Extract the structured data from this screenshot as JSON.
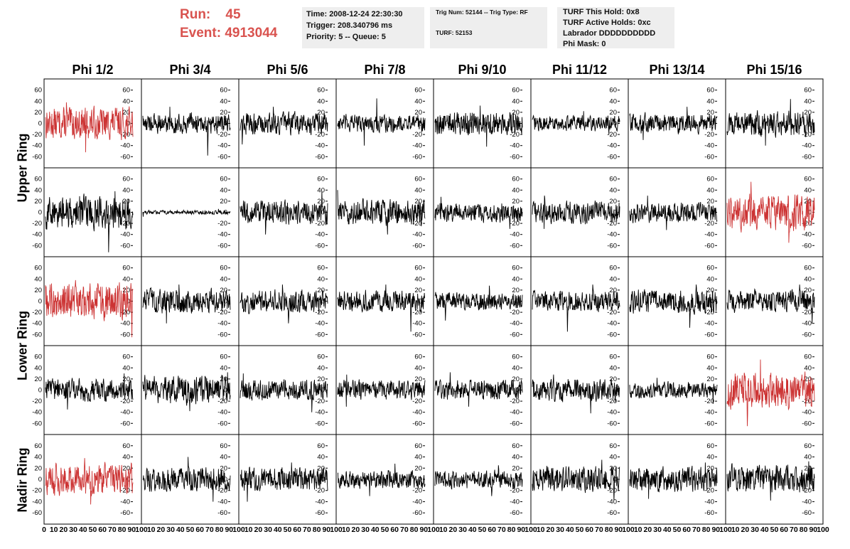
{
  "header": {
    "run_label": "Run:",
    "run_value": "45",
    "event_label": "Event:",
    "event_value": "4913044",
    "time_box": [
      "Time: 2008-12-24 22:30:30",
      "Trigger: 208.340796 ms",
      "Priority: 5 -- Queue: 5"
    ],
    "trig_box": [
      "Trig Num: 52144 -- Trig Type: RF",
      "TURF: 52153"
    ],
    "turf_box": [
      "TURF This Hold: 0x8",
      "TURF Active Holds: 0xc",
      "Labrador DDDDDDDDDD",
      "Phi Mask: 0"
    ]
  },
  "columns": [
    "Phi 1/2",
    "Phi 3/4",
    "Phi 5/6",
    "Phi 7/8",
    "Phi 9/10",
    "Phi 11/12",
    "Phi 13/14",
    "Phi 15/16"
  ],
  "rings": [
    "Upper Ring",
    "Lower Ring",
    "Nadir Ring"
  ],
  "colors": {
    "normal": "#000000",
    "triggered": "#cc3333",
    "header_accent": "#d9534f",
    "box_bg": "#eeeeee"
  },
  "chart_data": {
    "type": "line",
    "layout": "grid of 5 rows x 8 columns of waveform panels",
    "xlim": [
      0,
      100
    ],
    "ylim": [
      -75,
      75
    ],
    "y_ticks": [
      -60,
      -40,
      -20,
      0,
      20,
      40,
      60
    ],
    "x_tick_labels": [
      "0",
      "10",
      "20",
      "30",
      "40",
      "50",
      "60",
      "70",
      "80",
      "90",
      "100"
    ],
    "panels": [
      {
        "row": 0,
        "col": 0,
        "amp": 16,
        "color": "triggered",
        "peak": [
          38,
          -52
        ]
      },
      {
        "row": 0,
        "col": 1,
        "amp": 10,
        "color": "normal",
        "peak": [
          30,
          -58
        ]
      },
      {
        "row": 0,
        "col": 2,
        "amp": 11,
        "color": "normal",
        "peak": [
          30,
          -38
        ]
      },
      {
        "row": 0,
        "col": 3,
        "amp": 9,
        "color": "normal",
        "peak": [
          45,
          -40
        ]
      },
      {
        "row": 0,
        "col": 4,
        "amp": 12,
        "color": "normal",
        "peak": [
          32,
          -42
        ]
      },
      {
        "row": 0,
        "col": 5,
        "amp": 8,
        "color": "normal",
        "peak": [
          22,
          -20
        ]
      },
      {
        "row": 0,
        "col": 6,
        "amp": 10,
        "color": "normal",
        "peak": [
          30,
          -30
        ]
      },
      {
        "row": 0,
        "col": 7,
        "amp": 13,
        "color": "normal",
        "peak": [
          44,
          -40
        ]
      },
      {
        "row": 1,
        "col": 0,
        "amp": 17,
        "color": "normal",
        "peak": [
          38,
          -72
        ]
      },
      {
        "row": 1,
        "col": 1,
        "amp": 2,
        "color": "normal",
        "peak": [
          6,
          -8
        ]
      },
      {
        "row": 1,
        "col": 2,
        "amp": 12,
        "color": "normal",
        "peak": [
          38,
          -40
        ]
      },
      {
        "row": 1,
        "col": 3,
        "amp": 13,
        "color": "normal",
        "peak": [
          40,
          -40
        ]
      },
      {
        "row": 1,
        "col": 4,
        "amp": 10,
        "color": "normal",
        "peak": [
          28,
          -30
        ]
      },
      {
        "row": 1,
        "col": 5,
        "amp": 11,
        "color": "normal",
        "peak": [
          30,
          -30
        ]
      },
      {
        "row": 1,
        "col": 6,
        "amp": 10,
        "color": "normal",
        "peak": [
          30,
          -32
        ]
      },
      {
        "row": 1,
        "col": 7,
        "amp": 18,
        "color": "triggered",
        "peak": [
          55,
          -55
        ]
      },
      {
        "row": 2,
        "col": 0,
        "amp": 18,
        "color": "triggered",
        "peak": [
          38,
          -65
        ]
      },
      {
        "row": 2,
        "col": 1,
        "amp": 12,
        "color": "normal",
        "peak": [
          30,
          -40
        ]
      },
      {
        "row": 2,
        "col": 2,
        "amp": 12,
        "color": "normal",
        "peak": [
          30,
          -40
        ]
      },
      {
        "row": 2,
        "col": 3,
        "amp": 11,
        "color": "normal",
        "peak": [
          30,
          -55
        ]
      },
      {
        "row": 2,
        "col": 4,
        "amp": 9,
        "color": "normal",
        "peak": [
          28,
          -35
        ]
      },
      {
        "row": 2,
        "col": 5,
        "amp": 10,
        "color": "normal",
        "peak": [
          30,
          -55
        ]
      },
      {
        "row": 2,
        "col": 6,
        "amp": 12,
        "color": "normal",
        "peak": [
          30,
          -48
        ]
      },
      {
        "row": 2,
        "col": 7,
        "amp": 11,
        "color": "normal",
        "peak": [
          30,
          -40
        ]
      },
      {
        "row": 3,
        "col": 0,
        "amp": 11,
        "color": "normal",
        "peak": [
          30,
          -35
        ]
      },
      {
        "row": 3,
        "col": 1,
        "amp": 14,
        "color": "normal",
        "peak": [
          32,
          -38
        ]
      },
      {
        "row": 3,
        "col": 2,
        "amp": 10,
        "color": "normal",
        "peak": [
          30,
          -40
        ]
      },
      {
        "row": 3,
        "col": 3,
        "amp": 10,
        "color": "normal",
        "peak": [
          28,
          -30
        ]
      },
      {
        "row": 3,
        "col": 4,
        "amp": 10,
        "color": "normal",
        "peak": [
          32,
          -30
        ]
      },
      {
        "row": 3,
        "col": 5,
        "amp": 11,
        "color": "normal",
        "peak": [
          28,
          -42
        ]
      },
      {
        "row": 3,
        "col": 6,
        "amp": 8,
        "color": "normal",
        "peak": [
          22,
          -25
        ]
      },
      {
        "row": 3,
        "col": 7,
        "amp": 18,
        "color": "triggered",
        "peak": [
          55,
          -65
        ]
      },
      {
        "row": 4,
        "col": 0,
        "amp": 16,
        "color": "triggered",
        "peak": [
          38,
          -45
        ]
      },
      {
        "row": 4,
        "col": 1,
        "amp": 12,
        "color": "normal",
        "peak": [
          40,
          -40
        ]
      },
      {
        "row": 4,
        "col": 2,
        "amp": 12,
        "color": "normal",
        "peak": [
          30,
          -40
        ]
      },
      {
        "row": 4,
        "col": 3,
        "amp": 9,
        "color": "normal",
        "peak": [
          28,
          -30
        ]
      },
      {
        "row": 4,
        "col": 4,
        "amp": 9,
        "color": "normal",
        "peak": [
          25,
          -30
        ]
      },
      {
        "row": 4,
        "col": 5,
        "amp": 13,
        "color": "normal",
        "peak": [
          35,
          -38
        ]
      },
      {
        "row": 4,
        "col": 6,
        "amp": 12,
        "color": "normal",
        "peak": [
          30,
          -35
        ]
      },
      {
        "row": 4,
        "col": 7,
        "amp": 14,
        "color": "normal",
        "peak": [
          32,
          -38
        ]
      }
    ]
  }
}
